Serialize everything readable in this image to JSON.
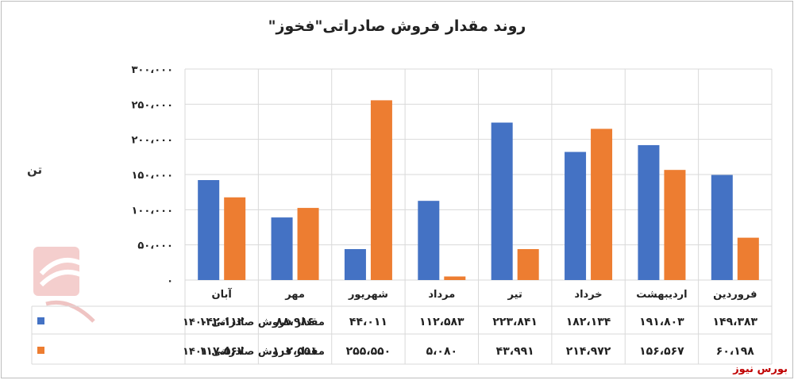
{
  "chart_data": {
    "type": "bar",
    "title": "روند مقدار فروش صادراتی\"فخوز\"",
    "ylabel": "تن",
    "ylim": [
      0,
      300000
    ],
    "yticks": [
      "۰",
      "۵۰،۰۰۰",
      "۱۰۰،۰۰۰",
      "۱۵۰،۰۰۰",
      "۲۰۰،۰۰۰",
      "۲۵۰،۰۰۰",
      "۳۰۰،۰۰۰"
    ],
    "grid": true,
    "categories": [
      "فروردین",
      "اردیبهشت",
      "خرداد",
      "تیر",
      "مرداد",
      "شهریور",
      "مهر",
      "آبان"
    ],
    "series": [
      {
        "name": "مقدار فروش صادراتی ۱۴۰۰",
        "color": "#4472c4",
        "values": [
          149383,
          191803,
          182134,
          223841,
          112583,
          44011,
          88986,
          142112
        ],
        "labels": [
          "۱۴۹،۳۸۳",
          "۱۹۱،۸۰۳",
          "۱۸۲،۱۳۴",
          "۲۲۳،۸۴۱",
          "۱۱۲،۵۸۳",
          "۴۴،۰۱۱",
          "۸۸،۹۸۶",
          "۱۴۲،۱۱۲"
        ]
      },
      {
        "name": "مقدار فروش صادراتی ۱۴۰۱",
        "color": "#ed7d31",
        "values": [
          60198,
          156567,
          214972,
          43991,
          5080,
          255550,
          102551,
          117567
        ],
        "labels": [
          "۶۰،۱۹۸",
          "۱۵۶،۵۶۷",
          "۲۱۴،۹۷۲",
          "۴۳،۹۹۱",
          "۵،۰۸۰",
          "۲۵۵،۵۵۰",
          "۱۰۲،۵۵۱",
          "۱۱۷،۵۶۷"
        ]
      }
    ],
    "legend": "data-table-left"
  },
  "source_label": "بورس نیوز"
}
